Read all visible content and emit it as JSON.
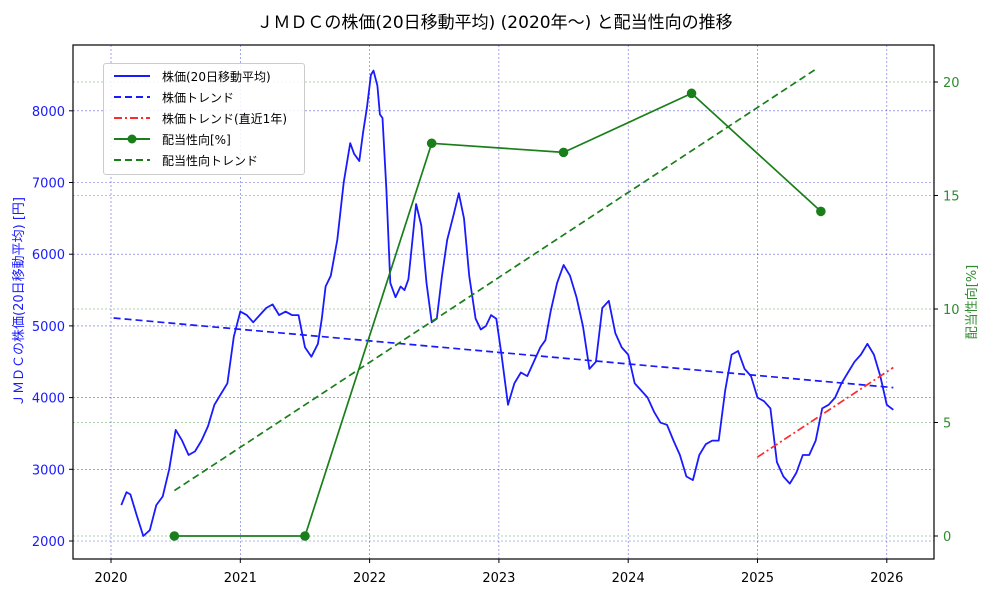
{
  "chart_data": {
    "type": "line",
    "title": "ＪＭＤＣの株価(20日移動平均) (2020年〜) と配当性向の推移",
    "xlabel": "",
    "ylabel_left": "ＪＭＤＣの株価(20日移動平均) [円]",
    "ylabel_right": "配当性向[%]",
    "x_ticks": [
      "2020",
      "2021",
      "2022",
      "2023",
      "2024",
      "2025",
      "2026"
    ],
    "y_left_ticks": [
      "2000",
      "3000",
      "4000",
      "5000",
      "6000",
      "7000",
      "8000"
    ],
    "y_right_ticks": [
      "0",
      "5",
      "10",
      "15",
      "20"
    ],
    "ylim_left": [
      1750,
      8800
    ],
    "ylim_right": [
      -1.1,
      21.4
    ],
    "xlim": [
      2019.72,
      2026.37
    ],
    "grid": true,
    "legend_position": "upper left",
    "series": [
      {
        "name": "株価(20日移動平均)",
        "axis": "left",
        "color": "#1a1aff",
        "style": "solid",
        "points": [
          [
            2020.08,
            2500
          ],
          [
            2020.12,
            2680
          ],
          [
            2020.15,
            2650
          ],
          [
            2020.2,
            2350
          ],
          [
            2020.25,
            2070
          ],
          [
            2020.3,
            2150
          ],
          [
            2020.35,
            2500
          ],
          [
            2020.4,
            2620
          ],
          [
            2020.45,
            3000
          ],
          [
            2020.5,
            3550
          ],
          [
            2020.55,
            3400
          ],
          [
            2020.6,
            3200
          ],
          [
            2020.65,
            3250
          ],
          [
            2020.7,
            3400
          ],
          [
            2020.75,
            3600
          ],
          [
            2020.8,
            3900
          ],
          [
            2020.85,
            4050
          ],
          [
            2020.9,
            4200
          ],
          [
            2020.95,
            4850
          ],
          [
            2021.0,
            5200
          ],
          [
            2021.05,
            5150
          ],
          [
            2021.1,
            5050
          ],
          [
            2021.15,
            5150
          ],
          [
            2021.2,
            5250
          ],
          [
            2021.25,
            5300
          ],
          [
            2021.3,
            5150
          ],
          [
            2021.35,
            5200
          ],
          [
            2021.4,
            5150
          ],
          [
            2021.45,
            5150
          ],
          [
            2021.5,
            4700
          ],
          [
            2021.55,
            4570
          ],
          [
            2021.6,
            4750
          ],
          [
            2021.63,
            5100
          ],
          [
            2021.66,
            5550
          ],
          [
            2021.7,
            5700
          ],
          [
            2021.75,
            6200
          ],
          [
            2021.8,
            7000
          ],
          [
            2021.85,
            7550
          ],
          [
            2021.88,
            7400
          ],
          [
            2021.92,
            7300
          ],
          [
            2021.95,
            7700
          ],
          [
            2021.98,
            8050
          ],
          [
            2022.01,
            8500
          ],
          [
            2022.03,
            8560
          ],
          [
            2022.06,
            8350
          ],
          [
            2022.08,
            7950
          ],
          [
            2022.1,
            7900
          ],
          [
            2022.13,
            6900
          ],
          [
            2022.16,
            5600
          ],
          [
            2022.2,
            5400
          ],
          [
            2022.24,
            5550
          ],
          [
            2022.27,
            5500
          ],
          [
            2022.3,
            5650
          ],
          [
            2022.32,
            6000
          ],
          [
            2022.36,
            6700
          ],
          [
            2022.4,
            6400
          ],
          [
            2022.44,
            5600
          ],
          [
            2022.48,
            5050
          ],
          [
            2022.52,
            5100
          ],
          [
            2022.56,
            5700
          ],
          [
            2022.6,
            6200
          ],
          [
            2022.65,
            6550
          ],
          [
            2022.69,
            6850
          ],
          [
            2022.73,
            6500
          ],
          [
            2022.77,
            5700
          ],
          [
            2022.82,
            5100
          ],
          [
            2022.86,
            4950
          ],
          [
            2022.9,
            5000
          ],
          [
            2022.94,
            5150
          ],
          [
            2022.98,
            5100
          ],
          [
            2023.02,
            4600
          ],
          [
            2023.07,
            3900
          ],
          [
            2023.12,
            4200
          ],
          [
            2023.17,
            4350
          ],
          [
            2023.22,
            4300
          ],
          [
            2023.27,
            4500
          ],
          [
            2023.32,
            4700
          ],
          [
            2023.36,
            4800
          ],
          [
            2023.4,
            5200
          ],
          [
            2023.45,
            5600
          ],
          [
            2023.5,
            5850
          ],
          [
            2023.55,
            5700
          ],
          [
            2023.6,
            5400
          ],
          [
            2023.65,
            5000
          ],
          [
            2023.7,
            4400
          ],
          [
            2023.75,
            4500
          ],
          [
            2023.8,
            5250
          ],
          [
            2023.85,
            5350
          ],
          [
            2023.9,
            4900
          ],
          [
            2023.95,
            4700
          ],
          [
            2024.0,
            4600
          ],
          [
            2024.05,
            4200
          ],
          [
            2024.1,
            4100
          ],
          [
            2024.15,
            4000
          ],
          [
            2024.2,
            3800
          ],
          [
            2024.25,
            3650
          ],
          [
            2024.3,
            3620
          ],
          [
            2024.35,
            3400
          ],
          [
            2024.4,
            3200
          ],
          [
            2024.45,
            2900
          ],
          [
            2024.5,
            2850
          ],
          [
            2024.55,
            3200
          ],
          [
            2024.6,
            3350
          ],
          [
            2024.65,
            3400
          ],
          [
            2024.7,
            3400
          ],
          [
            2024.75,
            4100
          ],
          [
            2024.8,
            4600
          ],
          [
            2024.85,
            4650
          ],
          [
            2024.9,
            4400
          ],
          [
            2024.95,
            4300
          ],
          [
            2025.0,
            4000
          ],
          [
            2025.05,
            3950
          ],
          [
            2025.1,
            3850
          ],
          [
            2025.15,
            3100
          ],
          [
            2025.2,
            2900
          ],
          [
            2025.25,
            2800
          ],
          [
            2025.3,
            2950
          ],
          [
            2025.35,
            3200
          ],
          [
            2025.4,
            3200
          ],
          [
            2025.45,
            3400
          ],
          [
            2025.5,
            3850
          ],
          [
            2025.55,
            3900
          ],
          [
            2025.6,
            4000
          ],
          [
            2025.65,
            4200
          ],
          [
            2025.7,
            4350
          ],
          [
            2025.75,
            4500
          ],
          [
            2025.8,
            4600
          ],
          [
            2025.85,
            4750
          ],
          [
            2025.9,
            4600
          ],
          [
            2025.95,
            4300
          ],
          [
            2026.0,
            3900
          ],
          [
            2026.05,
            3830
          ]
        ]
      },
      {
        "name": "株価トレンド",
        "axis": "left",
        "color": "#1a1aff",
        "style": "dashed",
        "points": [
          [
            2020.02,
            5110
          ],
          [
            2026.05,
            4140
          ]
        ]
      },
      {
        "name": "株価トレンド(直近1年)",
        "axis": "left",
        "color": "#ff2a2a",
        "style": "dashdot",
        "points": [
          [
            2025.0,
            3170
          ],
          [
            2026.05,
            4420
          ]
        ]
      },
      {
        "name": "配当性向[%]",
        "axis": "right",
        "color": "#1a7f1a",
        "style": "solid-marker",
        "points": [
          [
            2020.49,
            0.0
          ],
          [
            2021.5,
            0.0
          ],
          [
            2022.48,
            17.3
          ],
          [
            2023.5,
            16.9
          ],
          [
            2024.49,
            19.5
          ],
          [
            2025.49,
            14.3
          ]
        ]
      },
      {
        "name": "配当性向トレンド",
        "axis": "right",
        "color": "#1a7f1a",
        "style": "dashed",
        "points": [
          [
            2020.49,
            2.0
          ],
          [
            2025.46,
            20.6
          ]
        ]
      }
    ]
  }
}
